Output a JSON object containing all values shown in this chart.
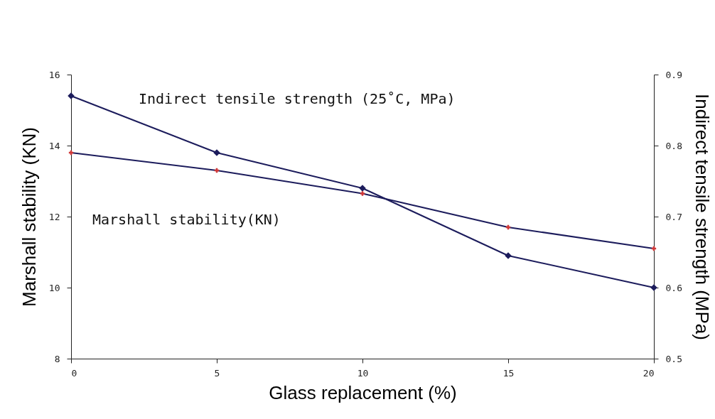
{
  "chart_data": {
    "type": "line",
    "xlabel": "Glass replacement (%)",
    "ylabel": "Marshall stability (KN)",
    "y2label": "Indirect tensile strength (MPa)",
    "x": [
      0,
      5,
      10,
      15,
      20
    ],
    "xlim": [
      0,
      20
    ],
    "xticks": [
      0,
      5,
      10,
      15,
      20
    ],
    "ylim": [
      8,
      16
    ],
    "yticks": [
      8,
      10,
      12,
      14,
      16
    ],
    "y2lim": [
      0.5,
      0.9
    ],
    "y2ticks": [
      0.5,
      0.6,
      0.7,
      0.8,
      0.9
    ],
    "grid": false,
    "series": [
      {
        "name": "Indirect tensile strength (25˚C, MPa)",
        "color": "#1c1c5c",
        "axis": "y2",
        "marker": "diamond",
        "values": [
          0.87,
          0.79,
          0.74,
          0.645,
          0.6
        ]
      },
      {
        "name": "Marshall stability(KN)",
        "color": "#d03838",
        "marker": "cross",
        "values": [
          13.8,
          13.3,
          12.65,
          11.7,
          11.1
        ]
      }
    ]
  }
}
